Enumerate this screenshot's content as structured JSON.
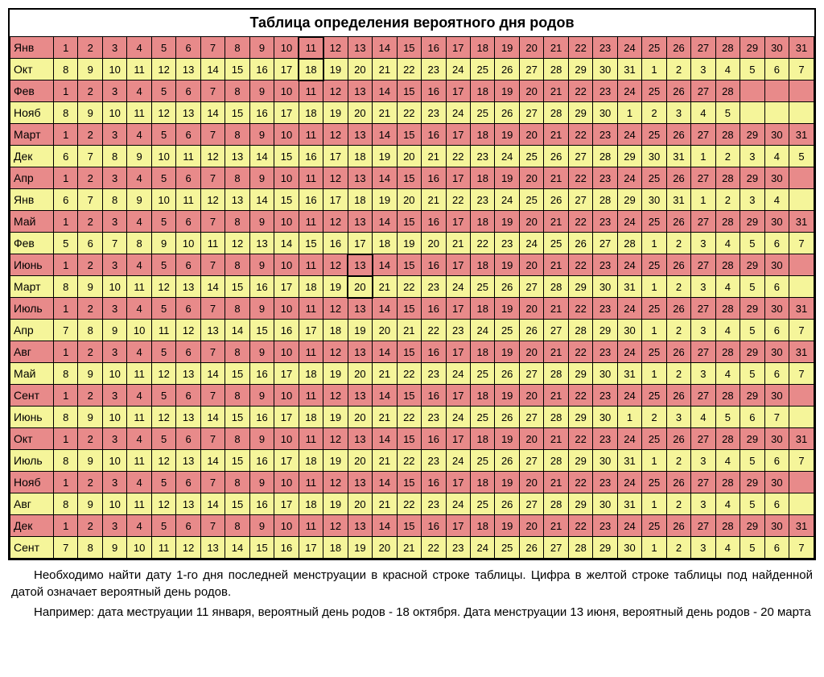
{
  "title": "Таблица определения вероятного дня родов",
  "colors": {
    "red_row": "#e88a8a",
    "yellow_row": "#f5f59a",
    "border": "#000000",
    "background": "#ffffff"
  },
  "table": {
    "label_col_width": 54,
    "cell_fontsize": 13,
    "rows": [
      {
        "color": "red",
        "label": "Янв",
        "start": 1,
        "count": 31,
        "hl": [
          11
        ]
      },
      {
        "color": "yellow",
        "label": "Окт",
        "start": 8,
        "count": 24,
        "wrap_start": 1,
        "wrap_count": 7,
        "hl": [
          11
        ]
      },
      {
        "color": "red",
        "label": "Фев",
        "start": 1,
        "count": 28
      },
      {
        "color": "yellow",
        "label": "Нояб",
        "start": 8,
        "count": 23,
        "wrap_start": 1,
        "wrap_count": 5
      },
      {
        "color": "red",
        "label": "Март",
        "start": 1,
        "count": 31
      },
      {
        "color": "yellow",
        "label": "Дек",
        "start": 6,
        "count": 26,
        "wrap_start": 1,
        "wrap_count": 5
      },
      {
        "color": "red",
        "label": "Апр",
        "start": 1,
        "count": 30
      },
      {
        "color": "yellow",
        "label": "Янв",
        "start": 6,
        "count": 26,
        "wrap_start": 1,
        "wrap_count": 4
      },
      {
        "color": "red",
        "label": "Май",
        "start": 1,
        "count": 31
      },
      {
        "color": "yellow",
        "label": "Фев",
        "start": 5,
        "count": 24,
        "wrap_start": 1,
        "wrap_count": 7
      },
      {
        "color": "red",
        "label": "Июнь",
        "start": 1,
        "count": 30,
        "hl": [
          13
        ]
      },
      {
        "color": "yellow",
        "label": "Март",
        "start": 8,
        "count": 24,
        "wrap_start": 1,
        "wrap_count": 6,
        "hl": [
          13
        ]
      },
      {
        "color": "red",
        "label": "Июль",
        "start": 1,
        "count": 31
      },
      {
        "color": "yellow",
        "label": "Апр",
        "start": 7,
        "count": 24,
        "wrap_start": 1,
        "wrap_count": 7
      },
      {
        "color": "red",
        "label": "Авг",
        "start": 1,
        "count": 31
      },
      {
        "color": "yellow",
        "label": "Май",
        "start": 8,
        "count": 24,
        "wrap_start": 1,
        "wrap_count": 7
      },
      {
        "color": "red",
        "label": "Сент",
        "start": 1,
        "count": 30
      },
      {
        "color": "yellow",
        "label": "Июнь",
        "start": 8,
        "count": 23,
        "wrap_start": 1,
        "wrap_count": 7
      },
      {
        "color": "red",
        "label": "Окт",
        "start": 1,
        "count": 31
      },
      {
        "color": "yellow",
        "label": "Июль",
        "start": 8,
        "count": 24,
        "wrap_start": 1,
        "wrap_count": 7
      },
      {
        "color": "red",
        "label": "Нояб",
        "start": 1,
        "count": 30
      },
      {
        "color": "yellow",
        "label": "Авг",
        "start": 8,
        "count": 24,
        "wrap_start": 1,
        "wrap_count": 6
      },
      {
        "color": "red",
        "label": "Дек",
        "start": 1,
        "count": 31
      },
      {
        "color": "yellow",
        "label": "Сент",
        "start": 7,
        "count": 24,
        "wrap_start": 1,
        "wrap_count": 7
      }
    ],
    "cols": 31
  },
  "footer": {
    "p1": "Необходимо найти дату 1-го дня последней менструации в красной строке таблицы. Цифра в желтой строке таблицы под найденной датой означает вероятный день родов.",
    "p2": "Например: дата меструации 11 января, вероятный день родов - 18 октября. Дата менструации 13 июня, вероятный день родов - 20 марта"
  }
}
